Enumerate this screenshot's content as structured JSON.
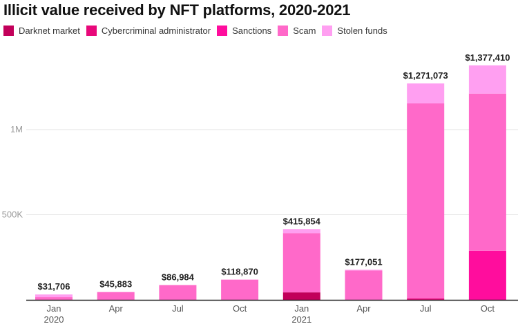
{
  "chart_data": {
    "type": "bar",
    "stacked": true,
    "title": "Illicit value received by NFT platforms, 2020-2021",
    "xlabel": "",
    "ylabel": "",
    "ylim": [
      0,
      1400000
    ],
    "grid": true,
    "legend_position": "top-left",
    "yticks": [
      {
        "value": 500000,
        "label": "500K"
      },
      {
        "value": 1000000,
        "label": "1M"
      }
    ],
    "categories": [
      {
        "label": "Jan",
        "sublabel": "2020"
      },
      {
        "label": "Apr",
        "sublabel": ""
      },
      {
        "label": "Jul",
        "sublabel": ""
      },
      {
        "label": "Oct",
        "sublabel": ""
      },
      {
        "label": "Jan",
        "sublabel": "2021"
      },
      {
        "label": "Apr",
        "sublabel": ""
      },
      {
        "label": "Jul",
        "sublabel": ""
      },
      {
        "label": "Oct",
        "sublabel": ""
      }
    ],
    "totals": [
      31706,
      45883,
      86984,
      118870,
      415854,
      177051,
      1271073,
      1377410
    ],
    "total_labels": [
      "$31,706",
      "$45,883",
      "$86,984",
      "$118,870",
      "$415,854",
      "$177,051",
      "$1,271,073",
      "$1,377,410"
    ],
    "series": [
      {
        "name": "Darknet market",
        "color": "#c2005a",
        "values": [
          0,
          0,
          0,
          0,
          44000,
          0,
          0,
          0
        ]
      },
      {
        "name": "Cybercriminal administrator",
        "color": "#e8087a",
        "values": [
          0,
          0,
          0,
          0,
          0,
          0,
          8000,
          0
        ]
      },
      {
        "name": "Sanctions",
        "color": "#ff0d9d",
        "values": [
          0,
          0,
          0,
          0,
          0,
          0,
          0,
          288000
        ]
      },
      {
        "name": "Scam",
        "color": "#ff69c9",
        "values": [
          16000,
          45883,
          86984,
          118870,
          348000,
          173051,
          1146073,
          923410
        ]
      },
      {
        "name": "Stolen funds",
        "color": "#ff9ff1",
        "values": [
          15706,
          0,
          0,
          0,
          23854,
          4000,
          117000,
          166000
        ]
      }
    ]
  }
}
